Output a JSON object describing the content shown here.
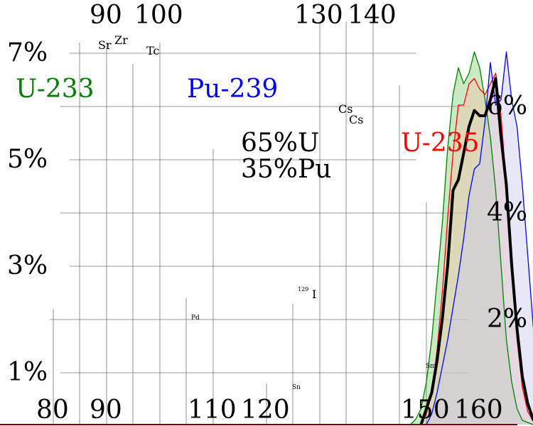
{
  "chart_data": {
    "type": "area",
    "title": "",
    "xlabel": "",
    "ylabel": "",
    "x_ticks_top": [
      "90",
      "100",
      "130",
      "140"
    ],
    "x_ticks_bottom": [
      "80",
      "90",
      "110",
      "120",
      "150",
      "160"
    ],
    "y_ticks_left": [
      "7%",
      "5%",
      "3%",
      "1%"
    ],
    "y_ticks_right": [
      "6%",
      "4%",
      "2%"
    ],
    "ylim": [
      0,
      8
    ],
    "element_labels": [
      {
        "text": "Sr",
        "x": 88
      },
      {
        "text": "Zr",
        "x": 93
      },
      {
        "text": "Tc",
        "x": 99
      },
      {
        "text": "Pd",
        "x": 106
      },
      {
        "text": "Sn",
        "x": 126
      },
      {
        "text": "Cs",
        "x": 133
      },
      {
        "text": "Cs",
        "x": 137
      },
      {
        "text": "Sm",
        "x": 151
      }
    ],
    "iodine_label": {
      "sup": "129",
      "text": "I",
      "x": 129
    },
    "mix_label": [
      "65%U",
      "35%Pu"
    ],
    "series": [
      {
        "name": "U-233",
        "color": "#008000",
        "fill": "#8fce7f",
        "points": [
          [
            77,
            0
          ],
          [
            78,
            0.1
          ],
          [
            79,
            0.3
          ],
          [
            80,
            0.8
          ],
          [
            81,
            1.6
          ],
          [
            82,
            2.7
          ],
          [
            83,
            3.8
          ],
          [
            84,
            5.2
          ],
          [
            85,
            6.2
          ],
          [
            86,
            6.7
          ],
          [
            87,
            6.4
          ],
          [
            88,
            6.6
          ],
          [
            89,
            7.0
          ],
          [
            90,
            6.7
          ],
          [
            91,
            6.1
          ],
          [
            92,
            5.4
          ],
          [
            93,
            4.4
          ],
          [
            94,
            3.0
          ],
          [
            95,
            1.6
          ],
          [
            96,
            0.8
          ],
          [
            97,
            0.3
          ],
          [
            98,
            0.08
          ],
          [
            100,
            0
          ],
          [
            120,
            0
          ],
          [
            121,
            0.05
          ],
          [
            122,
            0.3
          ],
          [
            123,
            1.0
          ],
          [
            124,
            2.5
          ],
          [
            125,
            4.5
          ],
          [
            126,
            6.0
          ],
          [
            127,
            6.3
          ],
          [
            128,
            6.5
          ],
          [
            129,
            6.4
          ],
          [
            130,
            6.6
          ],
          [
            131,
            6.1
          ],
          [
            132,
            6.2
          ],
          [
            133,
            6.4
          ],
          [
            134,
            6.7
          ],
          [
            135,
            6.6
          ],
          [
            136,
            5.2
          ],
          [
            137,
            3.6
          ],
          [
            138,
            2.1
          ],
          [
            139,
            1.0
          ],
          [
            140,
            0.45
          ],
          [
            141,
            0.2
          ],
          [
            142,
            0.08
          ],
          [
            143,
            0.02
          ],
          [
            144,
            0
          ]
        ]
      },
      {
        "name": "U-235",
        "color": "#ff0000",
        "fill": "#f2c4a8",
        "points": [
          [
            79,
            0
          ],
          [
            80,
            0.2
          ],
          [
            81,
            0.6
          ],
          [
            82,
            1.4
          ],
          [
            83,
            2.5
          ],
          [
            84,
            3.9
          ],
          [
            85,
            5.1
          ],
          [
            86,
            6.0
          ],
          [
            87,
            6.0
          ],
          [
            88,
            6.4
          ],
          [
            89,
            6.5
          ],
          [
            90,
            6.3
          ],
          [
            91,
            6.2
          ],
          [
            92,
            6.4
          ],
          [
            93,
            6.6
          ],
          [
            94,
            5.8
          ],
          [
            95,
            4.5
          ],
          [
            96,
            3.0
          ],
          [
            97,
            1.6
          ],
          [
            98,
            0.7
          ],
          [
            99,
            0.25
          ],
          [
            100,
            0.07
          ],
          [
            101,
            0
          ],
          [
            121,
            0
          ],
          [
            122,
            0.1
          ],
          [
            123,
            0.4
          ],
          [
            124,
            1.4
          ],
          [
            125,
            3.6
          ],
          [
            126,
            6.2
          ],
          [
            127,
            7.7
          ],
          [
            128,
            6.7
          ],
          [
            129,
            6.2
          ],
          [
            130,
            6.4
          ],
          [
            131,
            6.2
          ],
          [
            132,
            5.8
          ],
          [
            133,
            5.8
          ],
          [
            134,
            5.9
          ],
          [
            135,
            5.0
          ],
          [
            136,
            3.6
          ],
          [
            137,
            2.4
          ],
          [
            138,
            1.5
          ],
          [
            139,
            0.8
          ],
          [
            140,
            0.4
          ],
          [
            141,
            0.17
          ],
          [
            142,
            0.05
          ],
          [
            143,
            0
          ]
        ]
      },
      {
        "name": "Pu-239",
        "color": "#0000ff",
        "fill": "#c9c9f0",
        "points": [
          [
            80,
            0
          ],
          [
            81,
            0.2
          ],
          [
            82,
            0.6
          ],
          [
            83,
            1.1
          ],
          [
            84,
            1.6
          ],
          [
            85,
            2.2
          ],
          [
            86,
            2.8
          ],
          [
            87,
            3.5
          ],
          [
            88,
            4.3
          ],
          [
            89,
            4.8
          ],
          [
            90,
            4.9
          ],
          [
            91,
            5.7
          ],
          [
            92,
            6.8
          ],
          [
            93,
            6.0
          ],
          [
            94,
            6.1
          ],
          [
            95,
            7.0
          ],
          [
            96,
            6.1
          ],
          [
            97,
            5.6
          ],
          [
            98,
            4.5
          ],
          [
            99,
            3.2
          ],
          [
            100,
            1.9
          ],
          [
            101,
            0.8
          ],
          [
            102,
            0.28
          ],
          [
            103,
            0.07
          ],
          [
            104,
            0
          ],
          [
            121,
            0
          ],
          [
            122,
            0.2
          ],
          [
            123,
            0.6
          ],
          [
            124,
            2.0
          ],
          [
            125,
            4.5
          ],
          [
            126,
            6.6
          ],
          [
            127,
            7.8
          ],
          [
            128,
            7.2
          ],
          [
            129,
            6.6
          ],
          [
            130,
            6.2
          ],
          [
            131,
            6.0
          ],
          [
            132,
            5.6
          ],
          [
            133,
            5.0
          ],
          [
            134,
            4.2
          ],
          [
            135,
            3.3
          ],
          [
            136,
            2.4
          ],
          [
            137,
            1.6
          ],
          [
            138,
            1.0
          ],
          [
            139,
            0.55
          ],
          [
            140,
            0.28
          ],
          [
            141,
            0.1
          ],
          [
            142,
            0.03
          ],
          [
            143,
            0
          ]
        ]
      },
      {
        "name": "65%U 35%Pu",
        "color": "#000000",
        "fill": "none",
        "points": [
          [
            79,
            0
          ],
          [
            80,
            0.3
          ],
          [
            81,
            0.6
          ],
          [
            82,
            1.2
          ],
          [
            83,
            2.0
          ],
          [
            84,
            3.0
          ],
          [
            85,
            4.4
          ],
          [
            86,
            4.6
          ],
          [
            87,
            5.1
          ],
          [
            88,
            5.6
          ],
          [
            89,
            5.9
          ],
          [
            90,
            5.8
          ],
          [
            91,
            5.8
          ],
          [
            92,
            6.1
          ],
          [
            93,
            6.5
          ],
          [
            94,
            5.4
          ],
          [
            95,
            4.5
          ],
          [
            96,
            3.0
          ],
          [
            97,
            1.8
          ],
          [
            98,
            0.9
          ],
          [
            99,
            0.4
          ],
          [
            100,
            0.1
          ],
          [
            101,
            0
          ],
          [
            121,
            0
          ],
          [
            122,
            0.15
          ],
          [
            123,
            0.5
          ],
          [
            124,
            1.6
          ],
          [
            125,
            4.0
          ],
          [
            126,
            6.3
          ],
          [
            127,
            7.7
          ],
          [
            128,
            6.8
          ],
          [
            129,
            6.3
          ],
          [
            130,
            6.5
          ],
          [
            131,
            6.1
          ],
          [
            132,
            5.8
          ],
          [
            133,
            5.6
          ],
          [
            134,
            5.5
          ],
          [
            135,
            4.6
          ],
          [
            136,
            3.3
          ],
          [
            137,
            2.2
          ],
          [
            138,
            1.4
          ],
          [
            139,
            0.8
          ],
          [
            140,
            0.4
          ],
          [
            141,
            0.15
          ],
          [
            142,
            0.05
          ],
          [
            143,
            0
          ]
        ]
      }
    ]
  }
}
